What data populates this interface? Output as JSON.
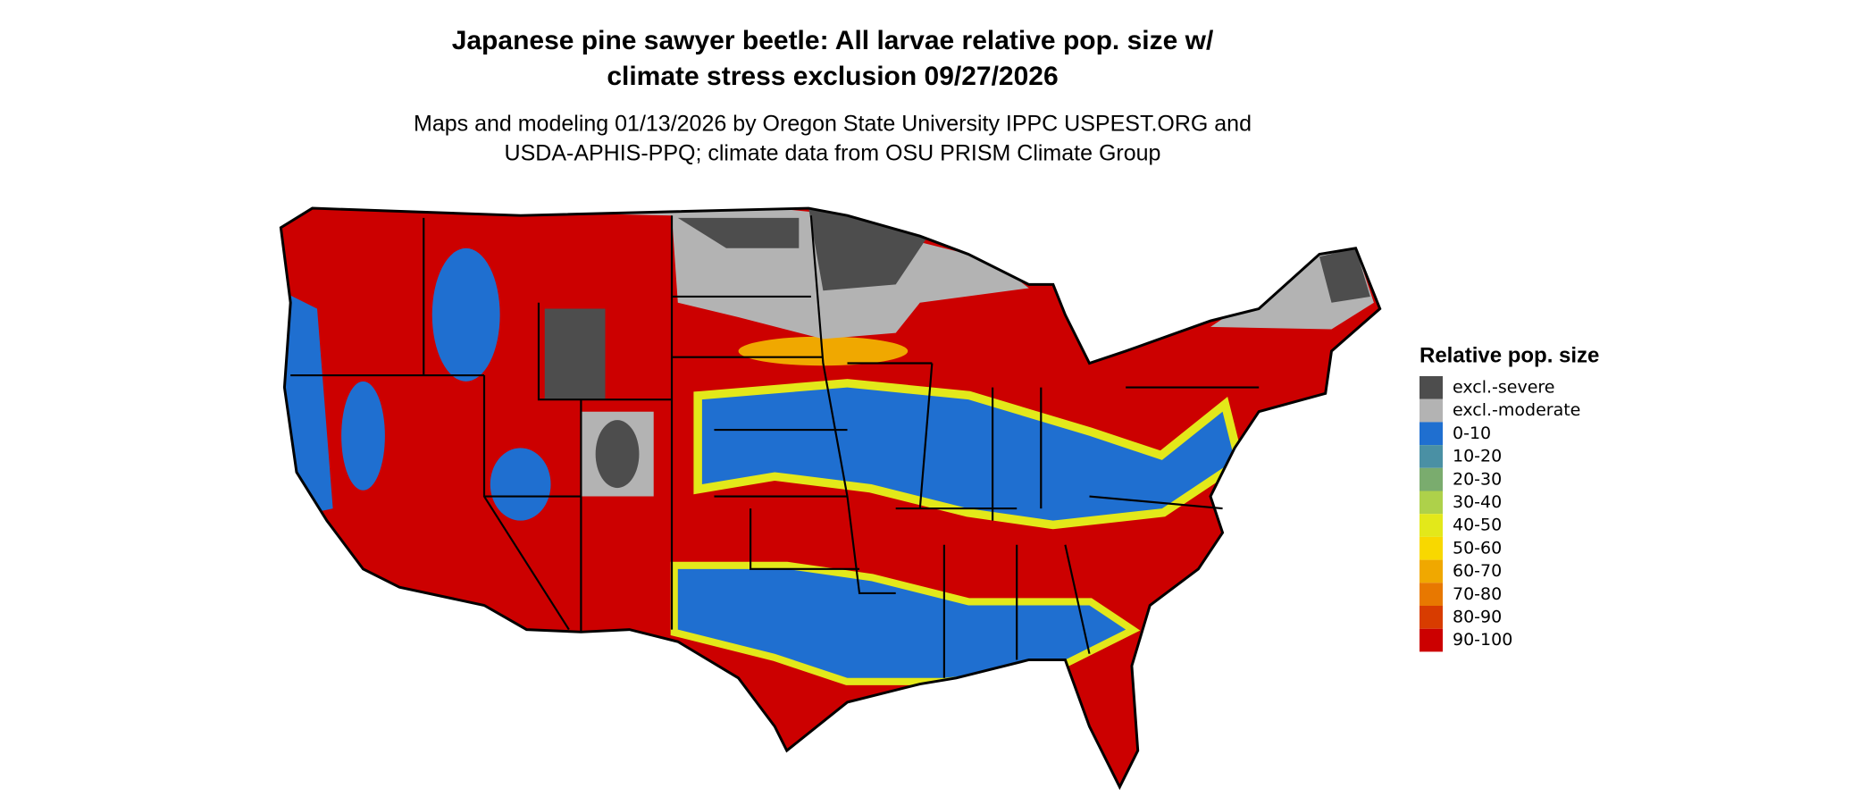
{
  "title": [
    "Japanese pine sawyer beetle: All larvae relative pop. size w/",
    "climate stress exclusion 09/27/2026"
  ],
  "subtitle": [
    "Maps and modeling 01/13/2026 by Oregon State University IPPC USPEST.ORG and",
    "USDA-APHIS-PPQ; climate data from OSU PRISM Climate Group"
  ],
  "legend": {
    "title": "Relative pop. size",
    "items": [
      {
        "label": "excl.-severe",
        "color": "#4d4d4d"
      },
      {
        "label": "excl.-moderate",
        "color": "#b3b3b3"
      },
      {
        "label": "0-10",
        "color": "#1f6fd0"
      },
      {
        "label": "10-20",
        "color": "#4a90a4"
      },
      {
        "label": "20-30",
        "color": "#7aac6e"
      },
      {
        "label": "30-40",
        "color": "#aed14a"
      },
      {
        "label": "40-50",
        "color": "#e3e81a"
      },
      {
        "label": "50-60",
        "color": "#f8d800"
      },
      {
        "label": "60-70",
        "color": "#f0a800"
      },
      {
        "label": "70-80",
        "color": "#e87800"
      },
      {
        "label": "80-90",
        "color": "#d83c00"
      },
      {
        "label": "90-100",
        "color": "#cc0000"
      }
    ]
  }
}
